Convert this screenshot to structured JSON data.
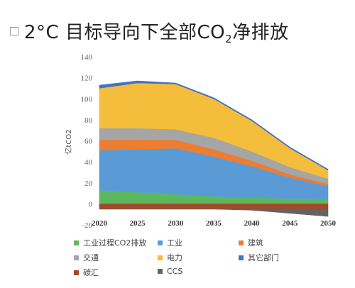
{
  "title": {
    "prefix": "2°C 目标导向下全部CO",
    "sub": "2",
    "suffix": "净排放"
  },
  "chart_data": {
    "type": "area",
    "stacked": true,
    "x": [
      2020,
      2025,
      2030,
      2035,
      2040,
      2045,
      2050
    ],
    "ylabel": "亿tCO2",
    "ylim": [
      -20,
      140
    ],
    "yticks": [
      -20,
      0,
      20,
      40,
      60,
      80,
      100,
      120,
      140
    ],
    "grid": false,
    "legend_position": "bottom",
    "positive_series": [
      {
        "name": "工业过程CO2排放",
        "color": "#5cb85c",
        "values": [
          13,
          11,
          9,
          7,
          6,
          5,
          4
        ]
      },
      {
        "name": "工业",
        "color": "#5b9bd5",
        "values": [
          38,
          41,
          44,
          38,
          30,
          20,
          13
        ]
      },
      {
        "name": "建筑",
        "color": "#ed7d31",
        "values": [
          10,
          9,
          8,
          7,
          5,
          3,
          2
        ]
      },
      {
        "name": "交通",
        "color": "#a5a5a5",
        "values": [
          11,
          11,
          10,
          11,
          9,
          7,
          5
        ]
      },
      {
        "name": "电力",
        "color": "#f5bd3c",
        "values": [
          38,
          43,
          43,
          37,
          29,
          18,
          8
        ]
      },
      {
        "name": "其它部门",
        "color": "#4472c4",
        "values": [
          3,
          2,
          1,
          1,
          1,
          1,
          1
        ]
      }
    ],
    "negative_series": [
      {
        "name": "碳汇",
        "color": "#a5472a",
        "values": [
          -5,
          -5,
          -5,
          -5,
          -5,
          -5,
          -5
        ]
      },
      {
        "name": "CCS",
        "color": "#636363",
        "values": [
          0,
          0,
          0,
          0,
          -1,
          -4,
          -7
        ]
      }
    ],
    "legend_order": [
      "工业过程CO2排放",
      "工业",
      "建筑",
      "交通",
      "电力",
      "其它部门",
      "碳汇",
      "CCS"
    ]
  }
}
